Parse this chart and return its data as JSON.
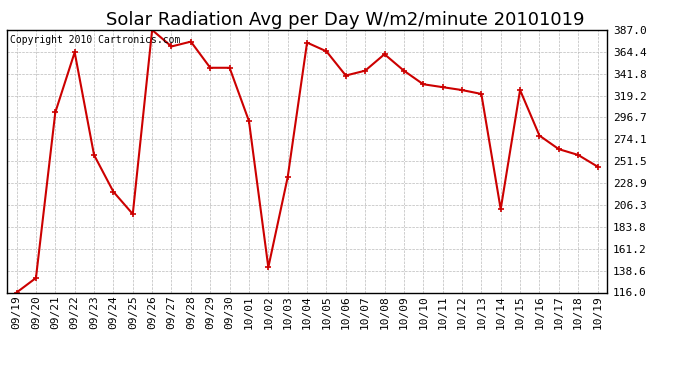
{
  "title": "Solar Radiation Avg per Day W/m2/minute 20101019",
  "copyright_text": "Copyright 2010 Cartronics.com",
  "labels": [
    "09/19",
    "09/20",
    "09/21",
    "09/22",
    "09/23",
    "09/24",
    "09/25",
    "09/26",
    "09/27",
    "09/28",
    "09/29",
    "09/30",
    "10/01",
    "10/02",
    "10/03",
    "10/04",
    "10/05",
    "10/06",
    "10/07",
    "10/08",
    "10/09",
    "10/10",
    "10/11",
    "10/12",
    "10/13",
    "10/14",
    "10/15",
    "10/16",
    "10/17",
    "10/18",
    "10/19"
  ],
  "values": [
    116.0,
    131.0,
    302.0,
    364.0,
    258.0,
    220.0,
    197.0,
    387.0,
    370.0,
    375.0,
    348.0,
    348.0,
    293.0,
    142.0,
    235.0,
    374.0,
    365.0,
    340.0,
    345.0,
    362.0,
    345.0,
    331.0,
    328.0,
    325.0,
    321.0,
    202.0,
    325.0,
    278.0,
    264.0,
    258.0,
    246.0
  ],
  "line_color": "#cc0000",
  "marker": "+",
  "marker_size": 5,
  "marker_linewidth": 1.2,
  "line_width": 1.5,
  "background_color": "#ffffff",
  "plot_bg_color": "#ffffff",
  "grid_color": "#bbbbbb",
  "ylim": [
    116.0,
    387.0
  ],
  "yticks": [
    116.0,
    138.6,
    161.2,
    183.8,
    206.3,
    228.9,
    251.5,
    274.1,
    296.7,
    319.2,
    341.8,
    364.4,
    387.0
  ],
  "title_fontsize": 13,
  "copyright_fontsize": 7,
  "tick_fontsize": 8
}
